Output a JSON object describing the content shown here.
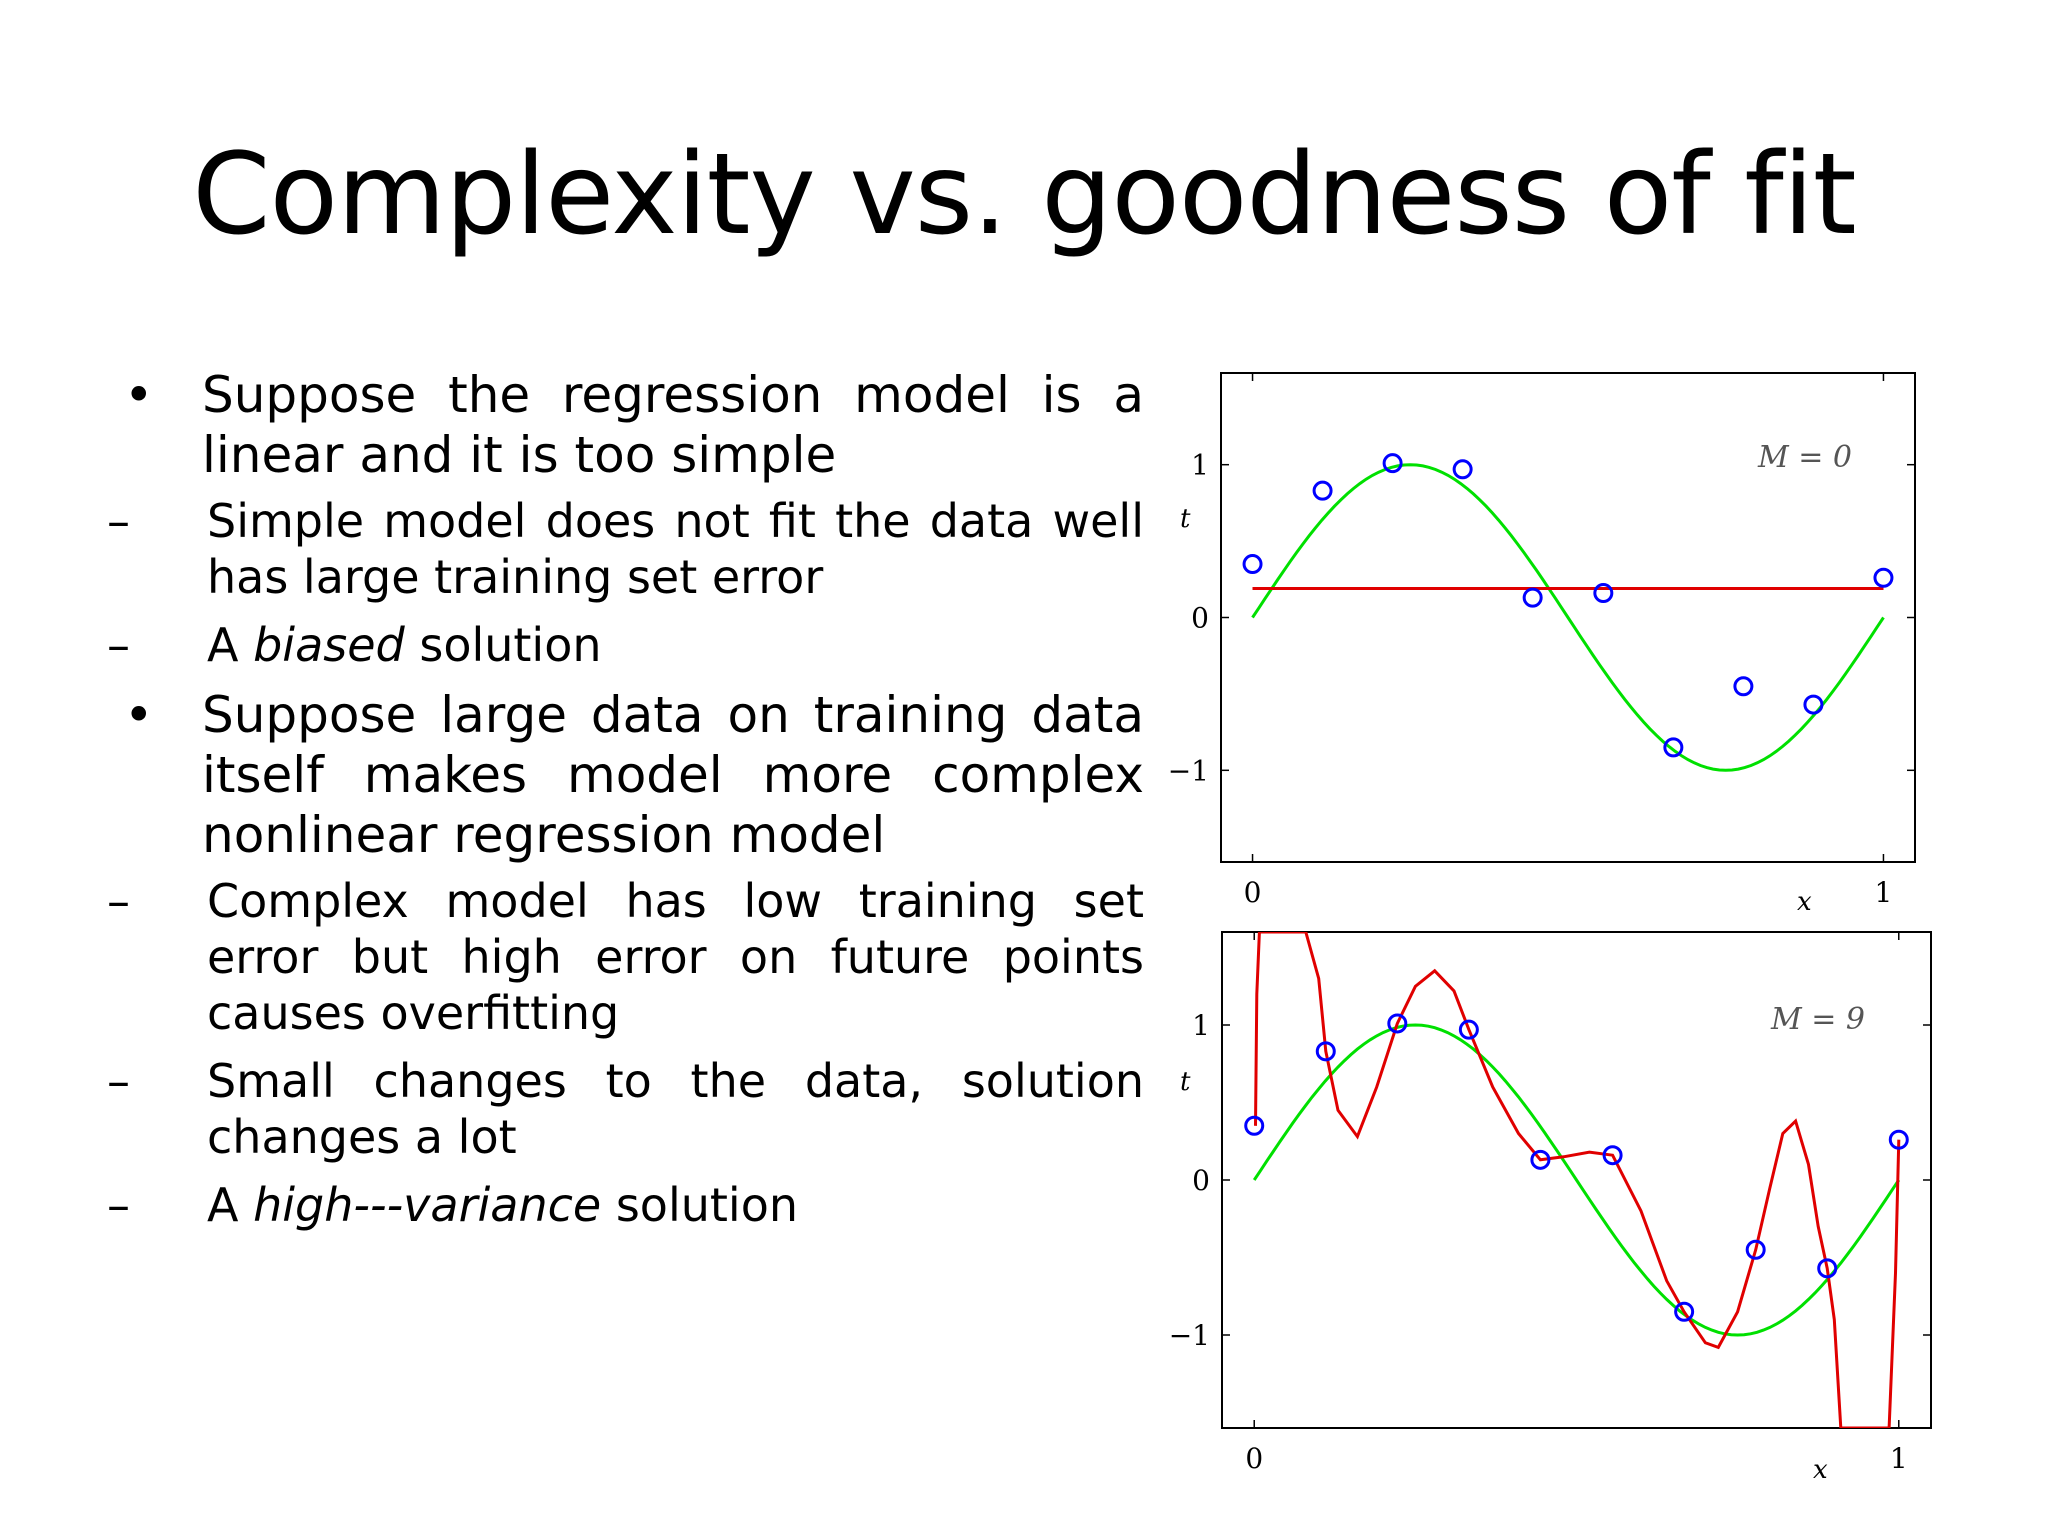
{
  "slide": {
    "title": "Complexity vs. goodness of fit",
    "bullets": [
      {
        "marker": "•",
        "text": "Suppose the regression model is a linear and it is too simple",
        "subs": [
          {
            "marker": "–",
            "pre": "Simple model does not fit the data well has large training set error",
            "em": "",
            "post": ""
          },
          {
            "marker": "–",
            "pre": "A ",
            "em": "biased",
            "post": " solution"
          }
        ]
      },
      {
        "marker": "•",
        "text": "Suppose large data on training data itself makes model more complex nonlinear regression model",
        "subs": [
          {
            "marker": "–",
            "pre": "Complex model has low training set error but high error on future points causes overfitting",
            "em": "",
            "post": ""
          },
          {
            "marker": "–",
            "pre": "Small changes to the data, solution changes a lot",
            "em": "",
            "post": ""
          },
          {
            "marker": "–",
            "pre": " A ",
            "em": "high---variance",
            "post": " solution"
          }
        ]
      }
    ]
  },
  "chart_data": [
    {
      "type": "line",
      "annotation": "M = 0",
      "xlabel": "x",
      "ylabel": "t",
      "xlim": [
        -0.05,
        1.05
      ],
      "ylim": [
        -1.6,
        1.6
      ],
      "xticks": [
        "0",
        "1"
      ],
      "yticks": [
        "−1",
        "0",
        "1"
      ],
      "points": {
        "x": [
          0.0,
          0.111,
          0.222,
          0.333,
          0.444,
          0.556,
          0.667,
          0.778,
          0.889,
          1.0
        ],
        "y": [
          0.35,
          0.83,
          1.01,
          0.97,
          0.13,
          0.16,
          -0.85,
          -0.45,
          -0.57,
          0.26
        ]
      },
      "series": [
        {
          "kind": "true-function",
          "color": "#00e000",
          "x": [
            0,
            0.05,
            0.1,
            0.15,
            0.2,
            0.25,
            0.3,
            0.35,
            0.4,
            0.45,
            0.5,
            0.55,
            0.6,
            0.65,
            0.7,
            0.75,
            0.8,
            0.85,
            0.9,
            0.95,
            1.0
          ],
          "y": [
            0,
            0.309,
            0.588,
            0.809,
            0.951,
            1.0,
            0.951,
            0.809,
            0.588,
            0.309,
            0,
            -0.309,
            -0.588,
            -0.809,
            -0.951,
            -1.0,
            -0.951,
            -0.809,
            -0.588,
            -0.309,
            0
          ]
        },
        {
          "kind": "fit",
          "color": "#e00000",
          "x": [
            0,
            1.0
          ],
          "y": [
            0.19,
            0.19
          ]
        }
      ]
    },
    {
      "type": "line",
      "annotation": "M = 9",
      "xlabel": "x",
      "ylabel": "t",
      "xlim": [
        -0.05,
        1.05
      ],
      "ylim": [
        -1.6,
        1.6
      ],
      "xticks": [
        "0",
        "1"
      ],
      "yticks": [
        "−1",
        "0",
        "1"
      ],
      "points": {
        "x": [
          0.0,
          0.111,
          0.222,
          0.333,
          0.444,
          0.556,
          0.667,
          0.778,
          0.889,
          1.0
        ],
        "y": [
          0.35,
          0.83,
          1.01,
          0.97,
          0.13,
          0.16,
          -0.85,
          -0.45,
          -0.57,
          0.26
        ]
      },
      "series": [
        {
          "kind": "true-function",
          "color": "#00e000",
          "x": [
            0,
            0.05,
            0.1,
            0.15,
            0.2,
            0.25,
            0.3,
            0.35,
            0.4,
            0.45,
            0.5,
            0.55,
            0.6,
            0.65,
            0.7,
            0.75,
            0.8,
            0.85,
            0.9,
            0.95,
            1.0
          ],
          "y": [
            0,
            0.309,
            0.588,
            0.809,
            0.951,
            1.0,
            0.951,
            0.809,
            0.588,
            0.309,
            0,
            -0.309,
            -0.588,
            -0.809,
            -0.951,
            -1.0,
            -0.951,
            -0.809,
            -0.588,
            -0.309,
            0
          ]
        },
        {
          "kind": "fit",
          "color": "#e00000",
          "x": [
            0.002,
            0.004,
            0.008,
            0.02,
            0.05,
            0.08,
            0.1,
            0.111,
            0.13,
            0.16,
            0.19,
            0.222,
            0.25,
            0.28,
            0.31,
            0.333,
            0.37,
            0.41,
            0.444,
            0.48,
            0.52,
            0.556,
            0.6,
            0.64,
            0.667,
            0.7,
            0.72,
            0.75,
            0.778,
            0.8,
            0.82,
            0.84,
            0.86,
            0.875,
            0.889,
            0.9,
            0.91,
            0.93,
            0.95,
            0.97,
            0.985,
            0.995,
            1.0
          ],
          "y": [
            0.35,
            1.2,
            1.6,
            1.6,
            1.6,
            1.6,
            1.3,
            0.83,
            0.45,
            0.28,
            0.6,
            1.01,
            1.25,
            1.35,
            1.22,
            0.97,
            0.6,
            0.3,
            0.13,
            0.15,
            0.18,
            0.16,
            -0.2,
            -0.65,
            -0.85,
            -1.05,
            -1.08,
            -0.85,
            -0.45,
            -0.05,
            0.3,
            0.38,
            0.1,
            -0.3,
            -0.57,
            -0.9,
            -1.6,
            -1.6,
            -1.6,
            -1.6,
            -1.6,
            -0.6,
            0.26
          ]
        }
      ]
    }
  ]
}
